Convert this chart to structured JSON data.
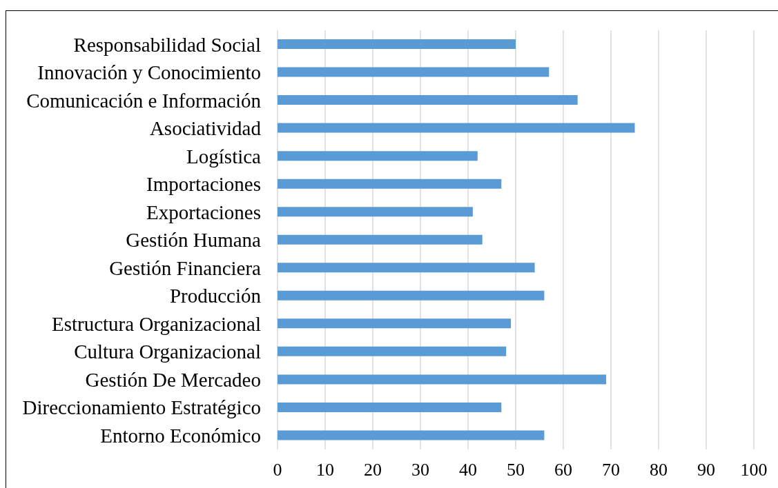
{
  "chart_data": {
    "type": "bar",
    "orientation": "horizontal",
    "categories": [
      "Responsabilidad Social",
      "Innovación y Conocimiento",
      "Comunicación e Información",
      "Asociatividad",
      "Logística",
      "Importaciones",
      "Exportaciones",
      "Gestión Humana",
      "Gestión Financiera",
      "Producción",
      "Estructura Organizacional",
      "Cultura Organizacional",
      "Gestión De Mercadeo",
      "Direccionamiento Estratégico",
      "Entorno Económico"
    ],
    "values": [
      50,
      57,
      63,
      75,
      42,
      47,
      41,
      43,
      54,
      56,
      49,
      48,
      69,
      47,
      56
    ],
    "color": "#5b9bd5",
    "xlim": [
      0,
      100
    ],
    "xticks": [
      0,
      10,
      20,
      30,
      40,
      50,
      60,
      70,
      80,
      90,
      100
    ],
    "grid": "x"
  }
}
